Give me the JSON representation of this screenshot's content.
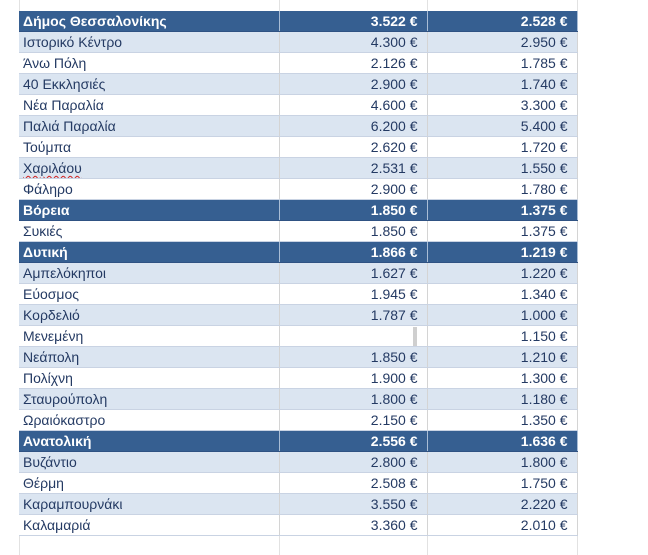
{
  "table": {
    "rows": [
      {
        "type": "header",
        "name": "Δήμος Θεσσαλονίκης",
        "v1": "3.522 €",
        "v2": "2.528 €"
      },
      {
        "type": "alt",
        "name": "Ιστορικό Κέντρο",
        "v1": "4.300 €",
        "v2": "2.950 €"
      },
      {
        "type": "plain",
        "name": "Άνω Πόλη",
        "v1": "2.126 €",
        "v2": "1.785 €"
      },
      {
        "type": "alt",
        "name": "40 Εκκλησιές",
        "v1": "2.900 €",
        "v2": "1.740 €"
      },
      {
        "type": "plain",
        "name": "Νέα Παραλία",
        "v1": "4.600 €",
        "v2": "3.300 €"
      },
      {
        "type": "alt",
        "name": "Παλιά Παραλία",
        "v1": "6.200 €",
        "v2": "5.400 €"
      },
      {
        "type": "plain",
        "name": "Τούμπα",
        "v1": "2.620 €",
        "v2": "1.720 €"
      },
      {
        "type": "alt",
        "name": "Χαριλάου",
        "v1": "2.531 €",
        "v2": "1.550 €",
        "spell": true
      },
      {
        "type": "plain",
        "name": "Φάληρο",
        "v1": "2.900 €",
        "v2": "1.780 €"
      },
      {
        "type": "header",
        "name": "Βόρεια",
        "v1": "1.850 €",
        "v2": "1.375 €"
      },
      {
        "type": "plain",
        "name": "Συκιές",
        "v1": "1.850 €",
        "v2": "1.375 €"
      },
      {
        "type": "header",
        "name": "Δυτική",
        "v1": "1.866 €",
        "v2": "1.219 €"
      },
      {
        "type": "alt",
        "name": "Αμπελόκηποι",
        "v1": "1.627 €",
        "v2": "1.220 €"
      },
      {
        "type": "plain",
        "name": "Εύοσμος",
        "v1": "1.945 €",
        "v2": "1.340 €"
      },
      {
        "type": "alt",
        "name": "Κορδελιό",
        "v1": "1.787 €",
        "v2": "1.000 €"
      },
      {
        "type": "plain",
        "name": "Μενεμένη",
        "v1": "",
        "v2": "1.150 €"
      },
      {
        "type": "alt",
        "name": "Νεάπολη",
        "v1": "1.850 €",
        "v2": "1.210 €"
      },
      {
        "type": "plain",
        "name": "Πολίχνη",
        "v1": "1.900 €",
        "v2": "1.300 €"
      },
      {
        "type": "alt",
        "name": "Σταυρούπολη",
        "v1": "1.800 €",
        "v2": "1.180 €"
      },
      {
        "type": "plain",
        "name": "Ωραιόκαστρο",
        "v1": "2.150 €",
        "v2": "1.350 €"
      },
      {
        "type": "header",
        "name": "Ανατολική",
        "v1": "2.556 €",
        "v2": "1.636 €"
      },
      {
        "type": "alt",
        "name": "Βυζάντιο",
        "v1": "2.800 €",
        "v2": "1.800 €"
      },
      {
        "type": "plain",
        "name": "Θέρμη",
        "v1": "2.508 €",
        "v2": "1.750 €"
      },
      {
        "type": "alt",
        "name": "Καραμπουρνάκι",
        "v1": "3.550 €",
        "v2": "2.220 €"
      },
      {
        "type": "plain",
        "name": "Καλαμαριά",
        "v1": "3.360 €",
        "v2": "2.010 €"
      }
    ]
  }
}
